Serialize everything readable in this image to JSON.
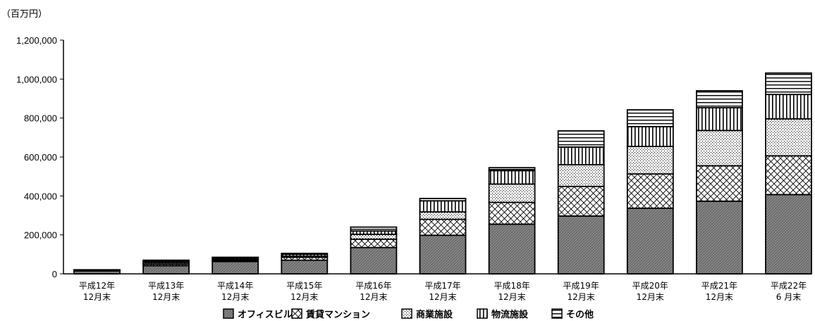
{
  "chart_data": {
    "type": "bar",
    "stacked": true,
    "unit_label": "（百万円）",
    "categories": [
      [
        "平成12年",
        "12月末"
      ],
      [
        "平成13年",
        "12月末"
      ],
      [
        "平成14年",
        "12月末"
      ],
      [
        "平成15年",
        "12月末"
      ],
      [
        "平成16年",
        "12月末"
      ],
      [
        "平成17年",
        "12月末"
      ],
      [
        "平成18年",
        "12月末"
      ],
      [
        "平成19年",
        "12月末"
      ],
      [
        "平成20年",
        "12月末"
      ],
      [
        "平成21年",
        "12月末"
      ],
      [
        "平成22年",
        "6 月末"
      ]
    ],
    "series": [
      {
        "name": "オフィスビル",
        "pattern": "dense",
        "values": [
          15000,
          42000,
          63000,
          70000,
          135000,
          198000,
          255000,
          297000,
          337000,
          373000,
          407000
        ]
      },
      {
        "name": "賃貸マンション",
        "pattern": "crosshatch",
        "values": [
          2000,
          8000,
          5000,
          15000,
          43000,
          82000,
          112000,
          152000,
          176000,
          182000,
          199000
        ]
      },
      {
        "name": "商業施設",
        "pattern": "dots",
        "values": [
          2000,
          8000,
          5000,
          5000,
          25000,
          38000,
          94000,
          111000,
          141000,
          181000,
          190000
        ]
      },
      {
        "name": "物流施設",
        "pattern": "vertical",
        "values": [
          1000,
          7000,
          7000,
          10000,
          17000,
          57000,
          69000,
          91000,
          102000,
          117000,
          125000
        ]
      },
      {
        "name": "その他",
        "pattern": "horizontal",
        "values": [
          1000,
          5000,
          5000,
          5000,
          20000,
          12000,
          15000,
          83000,
          86000,
          87000,
          110000
        ]
      }
    ],
    "y_ticks": [
      "0",
      "200,000",
      "400,000",
      "600,000",
      "800,000",
      "1,000,000",
      "1,200,000"
    ],
    "ylim": [
      0,
      1200000
    ],
    "grid": false,
    "legend_position": "bottom"
  }
}
